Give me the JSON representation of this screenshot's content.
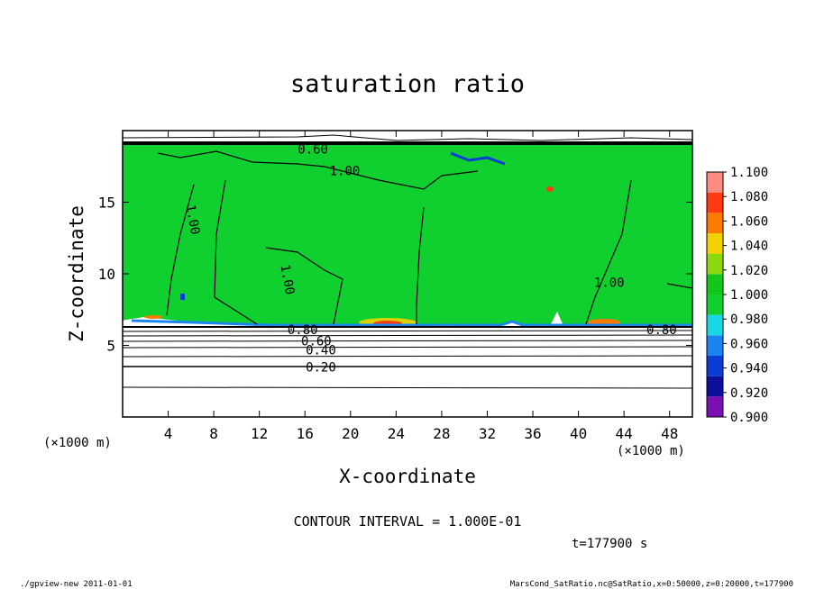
{
  "chart_data": {
    "type": "heatmap",
    "title": "saturation ratio",
    "xlabel": "X-coordinate",
    "ylabel": "Z-coordinate",
    "x_unit_left": "(×1000 m)",
    "x_unit_right": "(×1000 m)",
    "xlim": [
      0,
      50
    ],
    "ylim": [
      0,
      20
    ],
    "x_ticks": [
      4,
      8,
      12,
      16,
      20,
      24,
      28,
      32,
      36,
      40,
      44,
      48
    ],
    "y_ticks": [
      5,
      10,
      15
    ],
    "colorbar": {
      "levels": [
        0.9,
        0.92,
        0.94,
        0.96,
        0.98,
        1.0,
        1.02,
        1.04,
        1.06,
        1.08,
        1.1
      ],
      "labels": [
        "0.900",
        "0.920",
        "0.940",
        "0.960",
        "0.980",
        "1.000",
        "1.020",
        "1.040",
        "1.060",
        "1.080",
        "1.100"
      ],
      "colors": [
        "#7a0fb4",
        "#0b0f9a",
        "#0a3cd6",
        "#1a84f0",
        "#18d7e6",
        "#10d030",
        "#12c61a",
        "#8cd80c",
        "#f2d200",
        "#ff7a00",
        "#ff3a10",
        "#ff8c80"
      ]
    },
    "contour_labels": [
      {
        "text": "0.60",
        "x": 16.7,
        "y": 18.7
      },
      {
        "text": "1.00",
        "x": 19.5,
        "y": 17.2
      },
      {
        "text": "1.00",
        "x": 6.2,
        "y": 13.8
      },
      {
        "text": "1.00",
        "x": 14.5,
        "y": 9.6
      },
      {
        "text": "1.00",
        "x": 42.7,
        "y": 9.4
      },
      {
        "text": "0.80",
        "x": 15.8,
        "y": 6.1
      },
      {
        "text": "0.80",
        "x": 47.3,
        "y": 6.1
      },
      {
        "text": "0.60",
        "x": 17.0,
        "y": 5.3
      },
      {
        "text": "0.40",
        "x": 17.4,
        "y": 4.7
      },
      {
        "text": "0.20",
        "x": 17.4,
        "y": 3.5
      }
    ],
    "contour_interval": "CONTOUR INTERVAL = 1.000E-01",
    "time_label": "t=177900 s"
  },
  "footer": {
    "left": "./gpview-new  2011-01-01",
    "right": "MarsCond_SatRatio.nc@SatRatio,x=0:50000,z=0:20000,t=177900"
  }
}
